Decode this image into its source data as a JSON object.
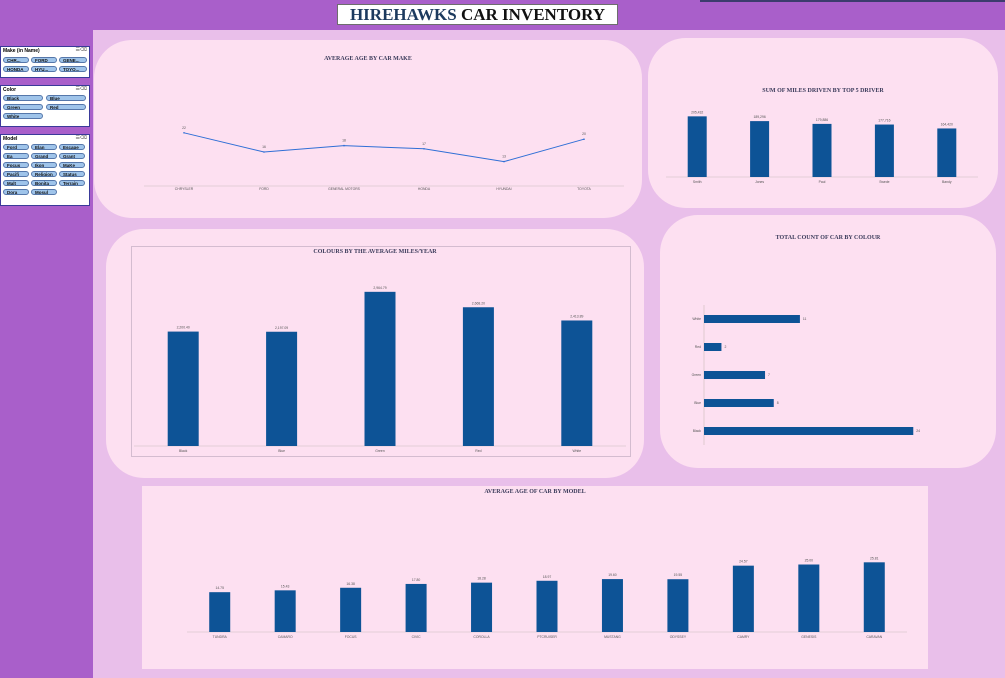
{
  "header": {
    "title_part1": "HIREHAWKS",
    "title_part2": "CAR INVENTORY"
  },
  "slicers": [
    {
      "title": "Make (in Name)",
      "items": [
        "CHR...",
        "FORD",
        "GENE...",
        "HONDA",
        "HYU...",
        "TOYO..."
      ]
    },
    {
      "title": "Color",
      "items": [
        "Black",
        "Blue",
        "Green",
        "Red",
        "White"
      ]
    },
    {
      "title": "Model",
      "items": [
        "Ford",
        "Elan",
        "Escape",
        "Ea",
        "Grand",
        "Grant",
        "Focus",
        "Ikon",
        "MaKe",
        "Pacifi",
        "Religion",
        "Status",
        "Malt",
        "Bonita",
        "Terrain",
        "Dora",
        "Mosul"
      ]
    }
  ],
  "charts": {
    "age_by_make": {
      "title": "AVERAGE AGE BY CAR MAKE"
    },
    "miles_top5": {
      "title": "SUM OF MILES DRIVEN BY TOP 5 DRIVER"
    },
    "colour_miles": {
      "title": "COLOURS BY THE AVERAGE MILES/YEAR"
    },
    "count_by_colour": {
      "title": "TOTAL COUNT OF CAR BY COLOUR"
    },
    "age_by_model": {
      "title": "AVERAGE AGE OF CAR BY MODEL"
    }
  },
  "chart_data": [
    {
      "id": "age_by_make",
      "type": "line",
      "title": "AVERAGE AGE BY CAR MAKE",
      "categories": [
        "CHRYSLER",
        "FORD",
        "GENERAL MOTORS",
        "HONDA",
        "HYUNDAI",
        "TOYOTA"
      ],
      "values": [
        22,
        16,
        18,
        17,
        13,
        20
      ],
      "ylim": [
        0,
        30
      ],
      "color": "#2f6fd6"
    },
    {
      "id": "miles_top5",
      "type": "bar",
      "title": "SUM OF MILES DRIVEN BY TOP 5 DRIVER",
      "categories": [
        "Smith",
        "Jones",
        "Paul",
        "Swede",
        "Bandy"
      ],
      "values": [
        205432,
        189296,
        179886,
        177716,
        164420
      ],
      "labels": [
        "205,432",
        "189,296",
        "179,886",
        "177,716",
        "164,420"
      ],
      "ylim": [
        0,
        210000
      ],
      "color": "#0d5396"
    },
    {
      "id": "colour_miles",
      "type": "bar",
      "title": "COLOURS BY THE AVERAGE MILES/YEAR",
      "categories": [
        "Black",
        "Blue",
        "Green",
        "Red",
        "White"
      ],
      "values": [
        2200.4,
        2197.09,
        2964.79,
        2668.2,
        2413.89
      ],
      "labels": [
        "2,200.40",
        "2,197.09",
        "2,964.79",
        "2,668.20",
        "2,413.89"
      ],
      "ylim": [
        0,
        3000
      ],
      "color": "#0d5396"
    },
    {
      "id": "count_by_colour",
      "type": "bar",
      "orientation": "horizontal",
      "title": "TOTAL COUNT OF CAR BY COLOUR",
      "categories": [
        "White",
        "Red",
        "Green",
        "Blue",
        "Black"
      ],
      "values": [
        11,
        2,
        7,
        8,
        24
      ],
      "xlim": [
        0,
        25
      ],
      "color": "#0d5396"
    },
    {
      "id": "age_by_model",
      "type": "bar",
      "title": "AVERAGE AGE OF CAR BY MODEL",
      "categories": [
        "TUNDRA",
        "CAMARO",
        "FOCUS",
        "CIVIC",
        "COROLLA",
        "PTCRUISER",
        "MUSTANG",
        "ODYSSEY",
        "CAMRY",
        "GENESIS",
        "CARAVAN"
      ],
      "values": [
        14.75,
        15.43,
        16.38,
        17.8,
        18.28,
        18.97,
        19.6,
        19.55,
        24.57,
        25.0,
        25.81
      ],
      "labels": [
        "14.75",
        "15.43",
        "16.38",
        "17.80",
        "18.28",
        "18.97",
        "19.60",
        "19.55",
        "24.57",
        "25.00",
        "25.81"
      ],
      "ylim": [
        0,
        30
      ],
      "color": "#0d5396"
    }
  ]
}
